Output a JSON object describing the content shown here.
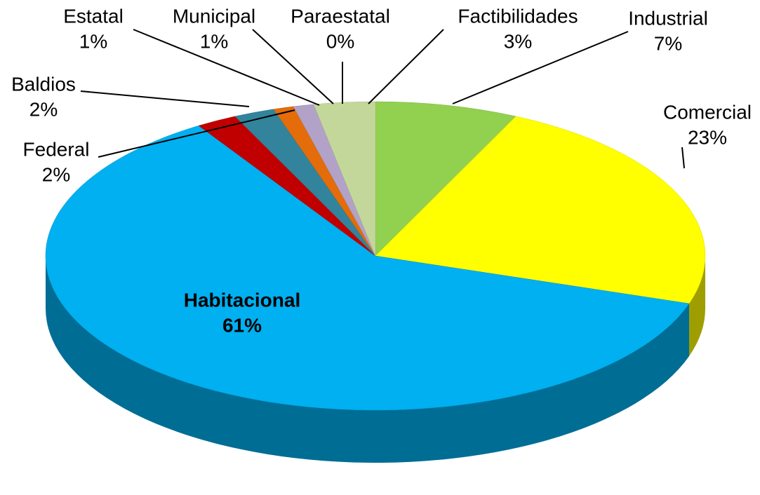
{
  "chart_data": {
    "type": "pie3d",
    "categories": [
      "Industrial",
      "Comercial",
      "Habitacional",
      "Baldios",
      "Federal",
      "Estatal",
      "Municipal",
      "Paraestatal",
      "Factibilidades"
    ],
    "values": [
      7,
      23,
      61,
      2,
      2,
      1,
      1,
      0,
      3
    ],
    "value_labels": [
      "7%",
      "23%",
      "61%",
      "2%",
      "2%",
      "1%",
      "1%",
      "0%",
      "3%"
    ],
    "colors": [
      "#92d050",
      "#ffff00",
      "#00b0f0",
      "#c00000",
      "#31849b",
      "#e46c0a",
      "#b3a2c7",
      "#8db4e2",
      "#c4d79b"
    ]
  }
}
